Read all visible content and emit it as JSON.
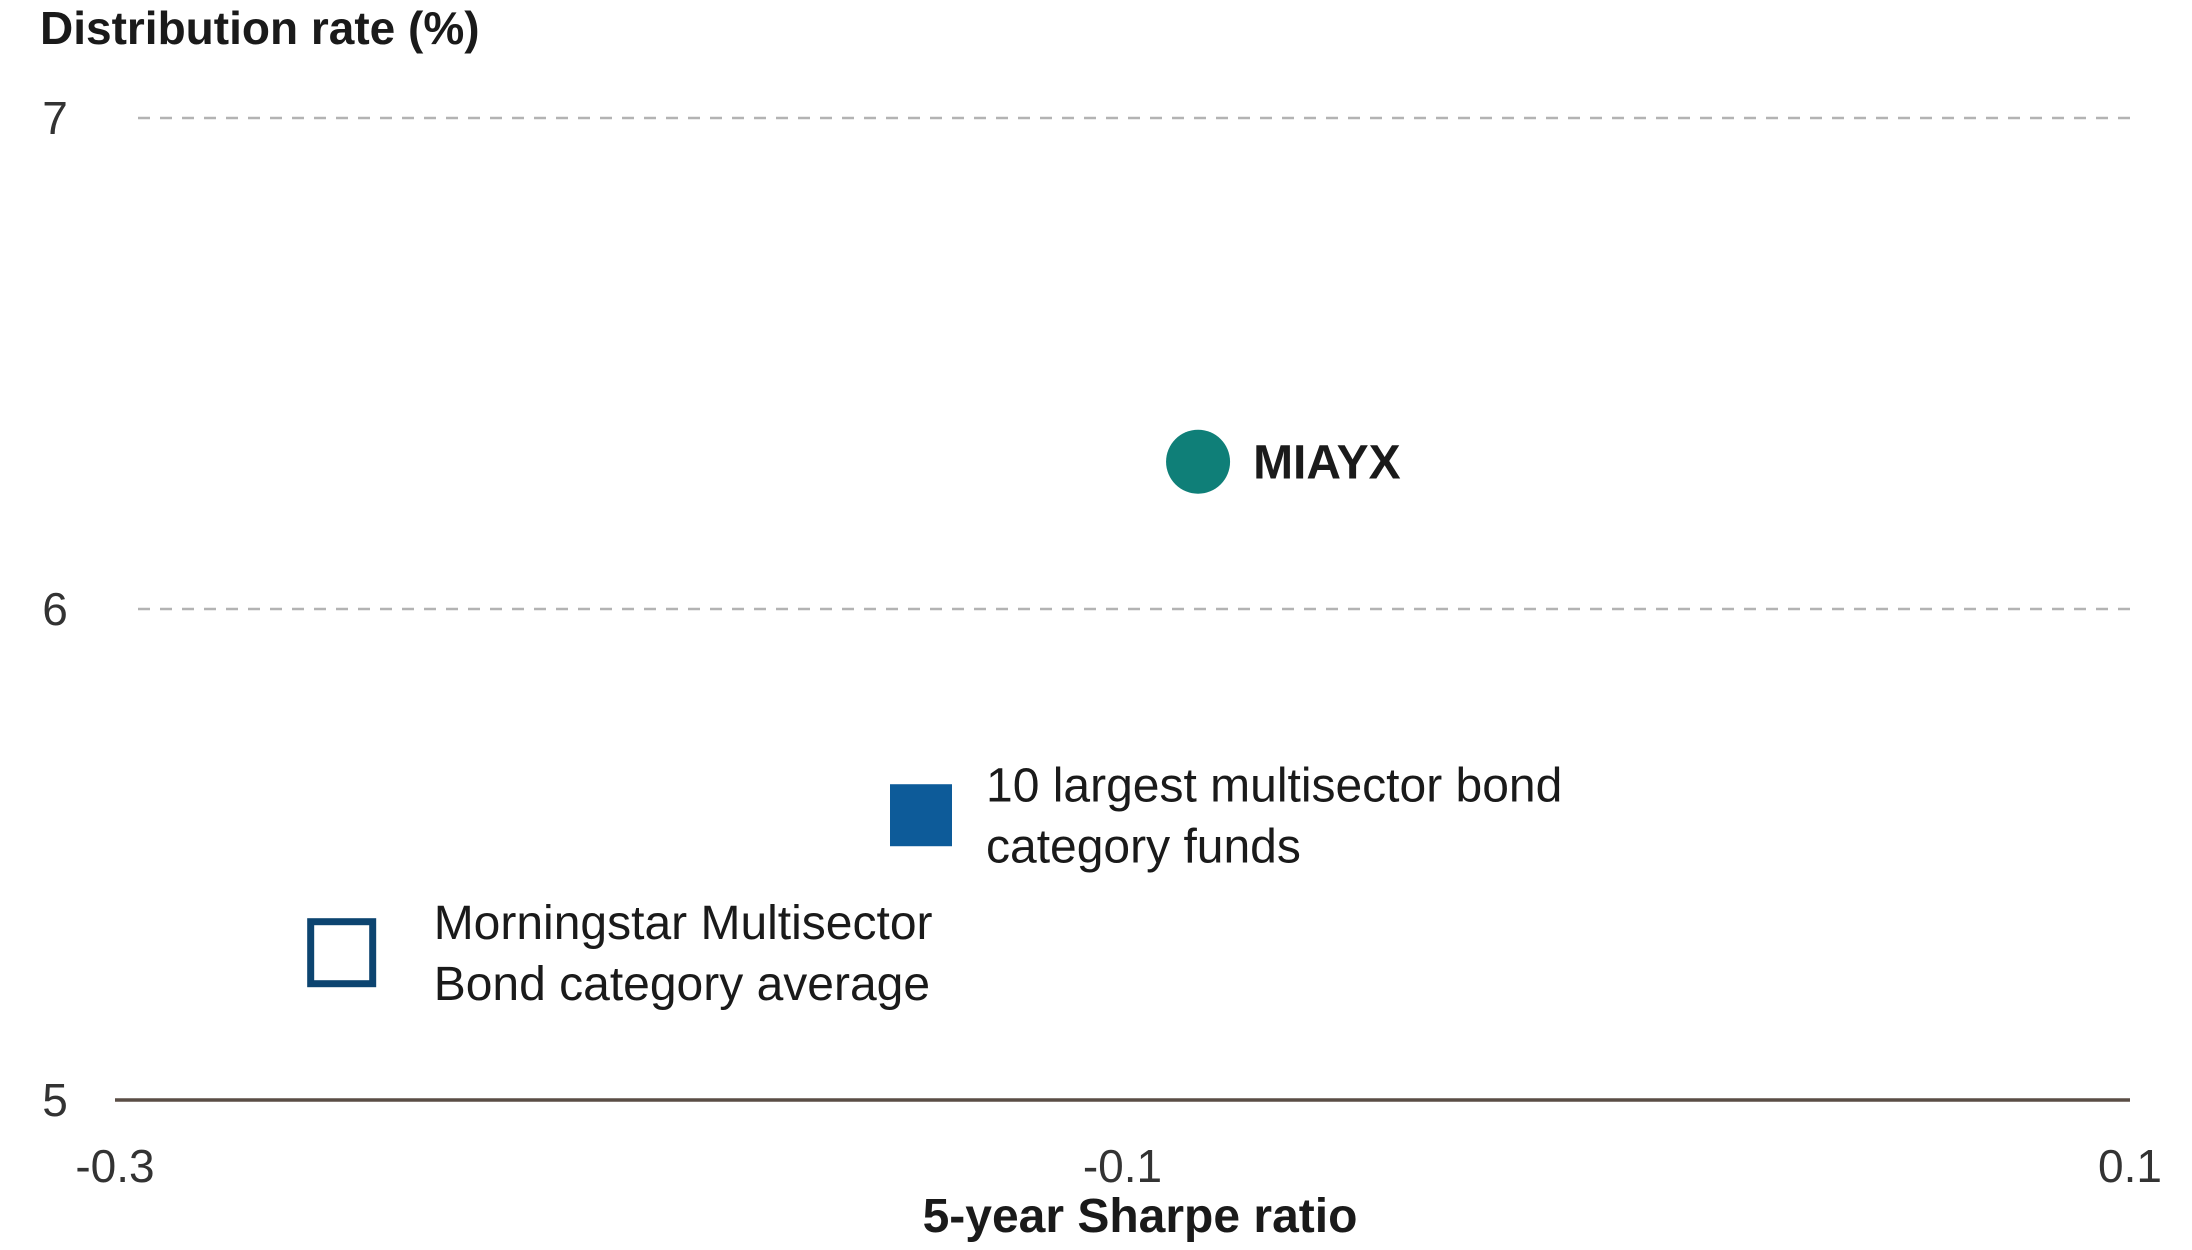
{
  "chart_data": {
    "type": "scatter",
    "xlabel": "5-year Sharpe ratio",
    "ylabel": "Distribution rate (%)",
    "xlim": [
      -0.3,
      0.1
    ],
    "ylim": [
      5,
      7
    ],
    "x_ticks": [
      {
        "value": -0.3,
        "label": "-0.3"
      },
      {
        "value": -0.1,
        "label": "-0.1"
      },
      {
        "value": 0.1,
        "label": "0.1"
      }
    ],
    "y_ticks": [
      {
        "value": 5,
        "label": "5"
      },
      {
        "value": 6,
        "label": "6"
      },
      {
        "value": 7,
        "label": "7"
      }
    ],
    "grid": "horizontal dashed at 6 and 7",
    "points": [
      {
        "name": "MIAYX",
        "label_lines": [
          "MIAYX"
        ],
        "x": -0.085,
        "y": 6.3,
        "marker": "circle",
        "color": "#0f7f78",
        "bold": true
      },
      {
        "name": "10 largest multisector bond category funds",
        "label_lines": [
          "10 largest multisector bond",
          "category funds"
        ],
        "x": -0.14,
        "y": 5.58,
        "marker": "square-filled",
        "color": "#0d5b99",
        "bold": false
      },
      {
        "name": "Morningstar Multisector Bond category average",
        "label_lines": [
          "Morningstar Multisector",
          "Bond category average"
        ],
        "x": -0.255,
        "y": 5.3,
        "marker": "square-outline",
        "color": "#0c4470",
        "bold": false
      }
    ]
  },
  "colors": {
    "axis": "#5a4d45",
    "grid": "#b3b3b3"
  }
}
